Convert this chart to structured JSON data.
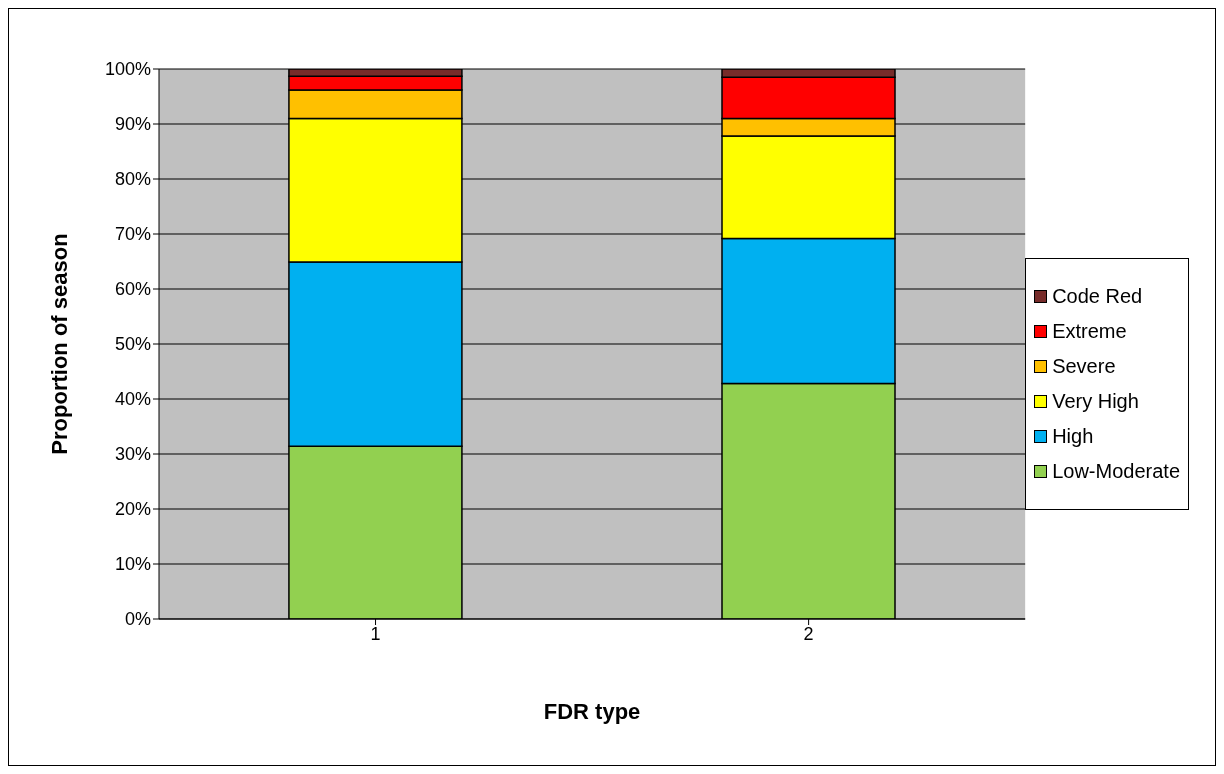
{
  "chart_data": {
    "type": "bar",
    "stacked": true,
    "xlabel": "FDR type",
    "ylabel": "Proportion of season",
    "categories": [
      "1",
      "2"
    ],
    "series": [
      {
        "name": "Low-Moderate",
        "color": "#92d050",
        "values": [
          31.4,
          42.8
        ]
      },
      {
        "name": "High",
        "color": "#00b0f0",
        "values": [
          33.5,
          26.4
        ]
      },
      {
        "name": "Very High",
        "color": "#ffff00",
        "values": [
          26.1,
          18.6
        ]
      },
      {
        "name": "Severe",
        "color": "#ffc000",
        "values": [
          5.2,
          3.2
        ]
      },
      {
        "name": "Extreme",
        "color": "#ff0000",
        "values": [
          2.5,
          7.5
        ]
      },
      {
        "name": "Code Red",
        "color": "#772c2a",
        "values": [
          1.3,
          1.5
        ]
      }
    ],
    "ylim": [
      0,
      100
    ],
    "yticks": [
      {
        "value": 0,
        "label": "0%"
      },
      {
        "value": 10,
        "label": "10%"
      },
      {
        "value": 20,
        "label": "20%"
      },
      {
        "value": 30,
        "label": "30%"
      },
      {
        "value": 40,
        "label": "40%"
      },
      {
        "value": 50,
        "label": "50%"
      },
      {
        "value": 60,
        "label": "60%"
      },
      {
        "value": 70,
        "label": "70%"
      },
      {
        "value": 80,
        "label": "80%"
      },
      {
        "value": 90,
        "label": "90%"
      },
      {
        "value": 100,
        "label": "100%"
      }
    ],
    "grid": "y",
    "legend": "right"
  }
}
